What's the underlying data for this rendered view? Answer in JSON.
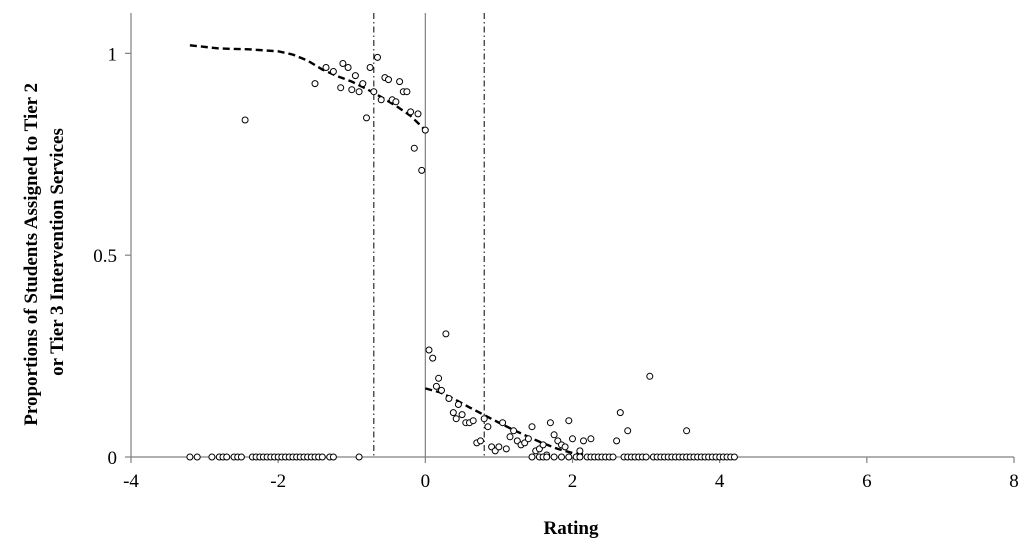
{
  "chart_data": {
    "type": "scatter",
    "title": "",
    "xlabel": "Rating",
    "ylabel_lines": [
      "Proportions of Students Assigned to Tier 2",
      "or Tier 3  Intervention Services"
    ],
    "xlim": [
      -4,
      8
    ],
    "ylim": [
      0,
      1.1
    ],
    "x_ticks": [
      -4,
      -2,
      0,
      2,
      4,
      6,
      8
    ],
    "x_tick_labels": [
      "-4",
      "-2",
      "0",
      "2",
      "4",
      "6",
      "8"
    ],
    "y_ticks": [
      0,
      0.5,
      1
    ],
    "y_tick_labels": [
      "0",
      "0.5",
      "1"
    ],
    "grid": false,
    "legend": "none",
    "cutoff_line_x": 0,
    "band_lines_x": [
      -0.7,
      0.8
    ],
    "fit_left": {
      "x": [
        -3.2,
        -2.8,
        -2.4,
        -2.0,
        -1.8,
        -1.6,
        -1.4,
        -1.2,
        -1.0,
        -0.8,
        -0.6,
        -0.4,
        -0.2,
        0.0
      ],
      "y": [
        1.02,
        1.012,
        1.01,
        1.005,
        0.997,
        0.982,
        0.96,
        0.944,
        0.93,
        0.912,
        0.892,
        0.87,
        0.845,
        0.81
      ]
    },
    "fit_right": {
      "x": [
        0.0,
        0.2,
        0.4,
        0.6,
        0.8,
        1.0,
        1.2,
        1.4,
        1.6,
        1.8,
        2.0,
        2.2
      ],
      "y": [
        0.17,
        0.16,
        0.143,
        0.123,
        0.104,
        0.085,
        0.067,
        0.05,
        0.034,
        0.02,
        0.01,
        0.005
      ]
    },
    "points": [
      [
        -2.45,
        0.835
      ],
      [
        -1.5,
        0.925
      ],
      [
        -1.35,
        0.965
      ],
      [
        -1.25,
        0.955
      ],
      [
        -1.15,
        0.915
      ],
      [
        -1.12,
        0.975
      ],
      [
        -1.05,
        0.965
      ],
      [
        -1.0,
        0.91
      ],
      [
        -0.95,
        0.945
      ],
      [
        -0.9,
        0.905
      ],
      [
        -0.85,
        0.925
      ],
      [
        -0.8,
        0.84
      ],
      [
        -0.75,
        0.965
      ],
      [
        -0.7,
        0.905
      ],
      [
        -0.65,
        0.99
      ],
      [
        -0.6,
        0.885
      ],
      [
        -0.55,
        0.94
      ],
      [
        -0.5,
        0.935
      ],
      [
        -0.45,
        0.885
      ],
      [
        -0.4,
        0.88
      ],
      [
        -0.35,
        0.93
      ],
      [
        -0.3,
        0.905
      ],
      [
        -0.25,
        0.905
      ],
      [
        -0.2,
        0.855
      ],
      [
        -0.15,
        0.765
      ],
      [
        -0.1,
        0.85
      ],
      [
        -0.05,
        0.71
      ],
      [
        0.0,
        0.81
      ],
      [
        0.05,
        0.265
      ],
      [
        0.1,
        0.245
      ],
      [
        0.15,
        0.175
      ],
      [
        0.18,
        0.195
      ],
      [
        0.22,
        0.165
      ],
      [
        0.28,
        0.305
      ],
      [
        0.32,
        0.145
      ],
      [
        0.38,
        0.11
      ],
      [
        0.42,
        0.095
      ],
      [
        0.45,
        0.13
      ],
      [
        0.5,
        0.105
      ],
      [
        0.55,
        0.085
      ],
      [
        0.6,
        0.085
      ],
      [
        0.65,
        0.09
      ],
      [
        0.7,
        0.035
      ],
      [
        0.75,
        0.04
      ],
      [
        0.8,
        0.095
      ],
      [
        0.85,
        0.075
      ],
      [
        0.9,
        0.025
      ],
      [
        0.95,
        0.015
      ],
      [
        1.0,
        0.025
      ],
      [
        1.05,
        0.085
      ],
      [
        1.1,
        0.02
      ],
      [
        1.15,
        0.05
      ],
      [
        1.2,
        0.065
      ],
      [
        1.25,
        0.04
      ],
      [
        1.3,
        0.03
      ],
      [
        1.35,
        0.035
      ],
      [
        1.4,
        0.045
      ],
      [
        1.45,
        0.075
      ],
      [
        1.5,
        0.015
      ],
      [
        1.55,
        0.02
      ],
      [
        1.6,
        0.03
      ],
      [
        1.65,
        0.005
      ],
      [
        1.7,
        0.085
      ],
      [
        1.75,
        0.055
      ],
      [
        1.8,
        0.04
      ],
      [
        1.85,
        0.03
      ],
      [
        1.9,
        0.025
      ],
      [
        1.95,
        0.09
      ],
      [
        2.0,
        0.045
      ],
      [
        2.1,
        0.015
      ],
      [
        2.15,
        0.04
      ],
      [
        2.25,
        0.045
      ],
      [
        2.6,
        0.04
      ],
      [
        2.65,
        0.11
      ],
      [
        2.75,
        0.065
      ],
      [
        3.05,
        0.2
      ],
      [
        3.55,
        0.065
      ],
      [
        -3.2,
        0
      ],
      [
        -3.1,
        0
      ],
      [
        -2.9,
        0
      ],
      [
        -2.8,
        0
      ],
      [
        -2.75,
        0
      ],
      [
        -2.7,
        0
      ],
      [
        -2.6,
        0
      ],
      [
        -2.55,
        0
      ],
      [
        -2.5,
        0
      ],
      [
        -2.35,
        0
      ],
      [
        -2.3,
        0
      ],
      [
        -2.25,
        0
      ],
      [
        -2.2,
        0
      ],
      [
        -2.15,
        0
      ],
      [
        -2.1,
        0
      ],
      [
        -2.05,
        0
      ],
      [
        -2.0,
        0
      ],
      [
        -1.95,
        0
      ],
      [
        -1.9,
        0
      ],
      [
        -1.85,
        0
      ],
      [
        -1.8,
        0
      ],
      [
        -1.75,
        0
      ],
      [
        -1.7,
        0
      ],
      [
        -1.65,
        0
      ],
      [
        -1.6,
        0
      ],
      [
        -1.55,
        0
      ],
      [
        -1.5,
        0
      ],
      [
        -1.45,
        0
      ],
      [
        -1.4,
        0
      ],
      [
        -1.3,
        0
      ],
      [
        -1.25,
        0
      ],
      [
        -0.9,
        0
      ],
      [
        1.45,
        0
      ],
      [
        1.55,
        0
      ],
      [
        1.6,
        0
      ],
      [
        1.65,
        0
      ],
      [
        1.75,
        0
      ],
      [
        1.85,
        0
      ],
      [
        1.95,
        0
      ],
      [
        2.05,
        0
      ],
      [
        2.1,
        0
      ],
      [
        2.2,
        0
      ],
      [
        2.25,
        0
      ],
      [
        2.3,
        0
      ],
      [
        2.35,
        0
      ],
      [
        2.4,
        0
      ],
      [
        2.45,
        0
      ],
      [
        2.5,
        0
      ],
      [
        2.55,
        0
      ],
      [
        2.7,
        0
      ],
      [
        2.75,
        0
      ],
      [
        2.8,
        0
      ],
      [
        2.85,
        0
      ],
      [
        2.9,
        0
      ],
      [
        2.95,
        0
      ],
      [
        3.0,
        0
      ],
      [
        3.1,
        0
      ],
      [
        3.15,
        0
      ],
      [
        3.2,
        0
      ],
      [
        3.25,
        0
      ],
      [
        3.3,
        0
      ],
      [
        3.35,
        0
      ],
      [
        3.4,
        0
      ],
      [
        3.45,
        0
      ],
      [
        3.5,
        0
      ],
      [
        3.55,
        0
      ],
      [
        3.6,
        0
      ],
      [
        3.65,
        0
      ],
      [
        3.7,
        0
      ],
      [
        3.75,
        0
      ],
      [
        3.8,
        0
      ],
      [
        3.85,
        0
      ],
      [
        3.9,
        0
      ],
      [
        3.95,
        0
      ],
      [
        4.0,
        0
      ],
      [
        4.05,
        0
      ],
      [
        4.1,
        0
      ],
      [
        4.15,
        0
      ],
      [
        4.2,
        0
      ]
    ],
    "colors": {
      "point_stroke": "#000000",
      "point_fill": "#ffffff",
      "fit_line": "#000000",
      "axis": "#808080",
      "band_line": "#000000"
    }
  }
}
